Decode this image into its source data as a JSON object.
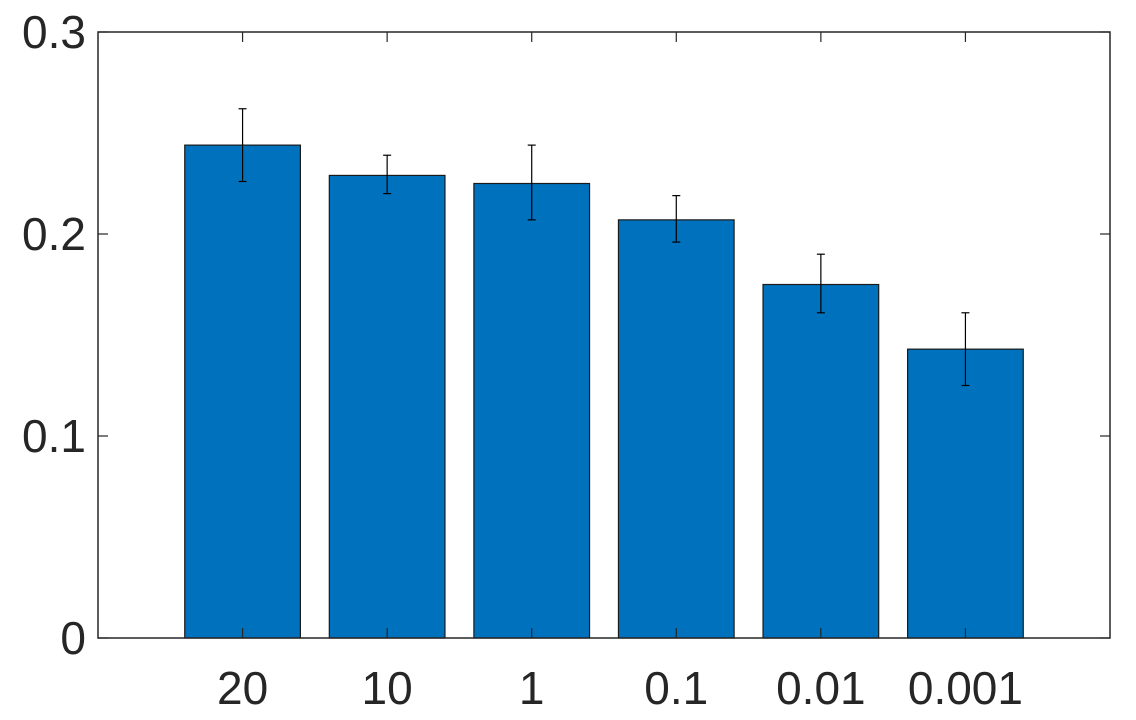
{
  "chart_data": {
    "type": "bar",
    "title": "",
    "xlabel": "",
    "ylabel": "",
    "categories": [
      "20",
      "10",
      "1",
      "0.1",
      "0.01",
      "0.001"
    ],
    "values": [
      0.244,
      0.229,
      0.225,
      0.207,
      0.175,
      0.143
    ],
    "error_low": [
      0.226,
      0.22,
      0.207,
      0.196,
      0.161,
      0.125
    ],
    "error_high": [
      0.262,
      0.239,
      0.244,
      0.219,
      0.19,
      0.161
    ],
    "ylim": [
      0,
      0.3
    ],
    "yticks": [
      "0",
      "0.1",
      "0.2",
      "0.3"
    ],
    "ytick_values": [
      0,
      0.1,
      0.2,
      0.3
    ],
    "bar_color": "#0072BD",
    "grid": false,
    "legend": "none"
  }
}
